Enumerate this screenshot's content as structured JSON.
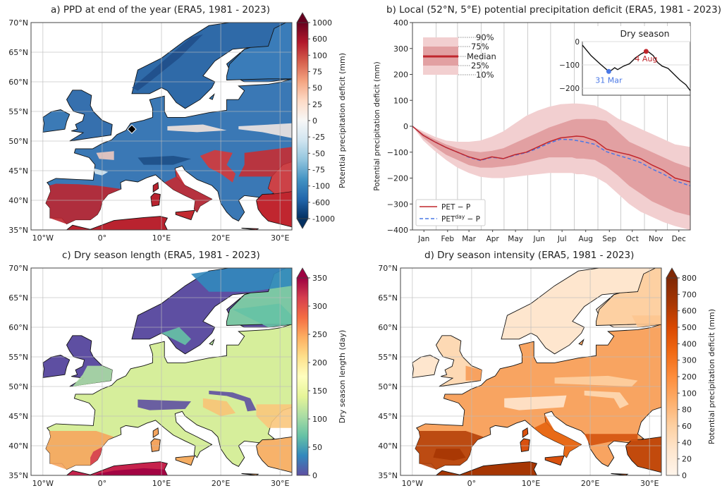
{
  "figure": {
    "panels": [
      "a",
      "b",
      "c",
      "d"
    ]
  },
  "chart_data": [
    {
      "id": "a",
      "type": "heatmap",
      "title": "a) PPD at end of the year (ERA5, 1981 - 2023)",
      "projection": "map",
      "lat_ticks": [
        "70°N",
        "65°N",
        "60°N",
        "55°N",
        "50°N",
        "45°N",
        "40°N",
        "35°N"
      ],
      "lon_ticks": [
        "10°W",
        "0°",
        "10°E",
        "20°E",
        "30°E"
      ],
      "lat_range": [
        35,
        70
      ],
      "lon_range": [
        -12,
        32
      ],
      "colorbar": {
        "label": "Potential precipitation deficit (mm)",
        "ticks": [
          "1000",
          "600",
          "100",
          "75",
          "50",
          "25",
          "0",
          "-25",
          "-50",
          "-75",
          "-100",
          "-600",
          "-1000"
        ],
        "colormap": "RdBu_r",
        "extend": "both",
        "colors_top": "#67001f",
        "colors_bottom": "#053061"
      },
      "marker": {
        "label": "52°N, 5°E",
        "lat": 52,
        "lon": 5,
        "shape": "diamond"
      },
      "regions": [
        {
          "name": "Scandinavia",
          "value_class": "negative"
        },
        {
          "name": "British Isles",
          "value_class": "negative"
        },
        {
          "name": "Central Europe",
          "value_class": "negative"
        },
        {
          "name": "Iberia",
          "value_class": "positive"
        },
        {
          "name": "Pannonian Basin",
          "value_class": "positive"
        },
        {
          "name": "Eastern Balkans / Black Sea",
          "value_class": "positive"
        },
        {
          "name": "North Africa",
          "value_class": "positive"
        }
      ]
    },
    {
      "id": "b",
      "type": "line",
      "title": "b) Local (52°N, 5°E) potential precipitation deficit (ERA5, 1981 - 2023)",
      "ylabel": "Potential precipitation deficit (mm)",
      "xlabel": "",
      "ylim": [
        -400,
        400
      ],
      "yticks": [
        "400",
        "300",
        "200",
        "100",
        "0",
        "−100",
        "−200",
        "−300",
        "−400"
      ],
      "ytick_values": [
        400,
        300,
        200,
        100,
        0,
        -100,
        -200,
        -300,
        -400
      ],
      "months": [
        "Jan",
        "Feb",
        "Mar",
        "Apr",
        "May",
        "Jun",
        "Jul",
        "Aug",
        "Sep",
        "Oct",
        "Nov",
        "Dec"
      ],
      "x_day_of_year": [
        1,
        15,
        30,
        45,
        60,
        75,
        90,
        105,
        120,
        135,
        150,
        165,
        180,
        195,
        210,
        216,
        225,
        240,
        255,
        270,
        285,
        300,
        315,
        330,
        345,
        365
      ],
      "series": [
        {
          "name": "PET − P",
          "style": "solid",
          "color": "#c0262c",
          "values": [
            0,
            -35,
            -60,
            -82,
            -100,
            -118,
            -130,
            -118,
            -125,
            -110,
            -100,
            -80,
            -60,
            -45,
            -40,
            -38,
            -40,
            -55,
            -88,
            -100,
            -110,
            -125,
            -150,
            -170,
            -200,
            -215
          ]
        },
        {
          "name": "PETday − P",
          "style": "dashed",
          "color": "#4a78e6",
          "values": [
            0,
            -35,
            -60,
            -82,
            -100,
            -120,
            -132,
            -120,
            -125,
            -112,
            -102,
            -85,
            -65,
            -50,
            -52,
            -55,
            -60,
            -70,
            -98,
            -112,
            -125,
            -140,
            -165,
            -185,
            -210,
            -230
          ]
        },
        {
          "name": "90%",
          "role": "band_upper_outer",
          "values": [
            0,
            -20,
            -40,
            -55,
            -60,
            -60,
            -55,
            -40,
            -20,
            10,
            40,
            60,
            75,
            85,
            88,
            88,
            86,
            80,
            60,
            30,
            10,
            -10,
            -30,
            -50,
            -70,
            -80
          ]
        },
        {
          "name": "75%",
          "role": "band_upper_inner",
          "values": [
            0,
            -28,
            -50,
            -70,
            -85,
            -95,
            -100,
            -95,
            -85,
            -65,
            -45,
            -25,
            -5,
            10,
            25,
            28,
            28,
            28,
            20,
            -20,
            -60,
            -80,
            -100,
            -120,
            -140,
            -160
          ]
        },
        {
          "name": "25%",
          "role": "band_lower_inner",
          "values": [
            0,
            -45,
            -80,
            -110,
            -130,
            -150,
            -160,
            -160,
            -155,
            -150,
            -140,
            -130,
            -120,
            -120,
            -120,
            -125,
            -125,
            -130,
            -155,
            -190,
            -230,
            -260,
            -290,
            -310,
            -330,
            -345
          ]
        },
        {
          "name": "10%",
          "role": "band_lower_outer",
          "values": [
            0,
            -55,
            -95,
            -130,
            -160,
            -180,
            -195,
            -200,
            -200,
            -195,
            -190,
            -185,
            -180,
            -180,
            -180,
            -185,
            -185,
            -195,
            -220,
            -260,
            -300,
            -330,
            -350,
            -370,
            -385,
            -400
          ]
        }
      ],
      "band_legend": {
        "labels": [
          "90%",
          "75%",
          "Median",
          "25%",
          "10%"
        ]
      },
      "legend": {
        "placement": "lower-left",
        "entries": [
          "PET − P",
          "PETday − P"
        ]
      },
      "inset": {
        "title": "Dry season",
        "ylim": [
          -230,
          0
        ],
        "yticks": [
          "0",
          "−100",
          "−200"
        ],
        "ytick_values": [
          0,
          -100,
          -200
        ],
        "x_day_of_year": [
          1,
          30,
          60,
          90,
          100,
          110,
          120,
          140,
          160,
          180,
          200,
          216,
          225,
          240,
          255,
          270,
          290,
          310,
          330,
          350,
          365
        ],
        "values": [
          -15,
          -60,
          -95,
          -128,
          -122,
          -112,
          -120,
          -105,
          -95,
          -70,
          -52,
          -42,
          -45,
          -60,
          -90,
          -105,
          -115,
          -140,
          -165,
          -185,
          -210
        ],
        "points": [
          {
            "label": "31 Mar",
            "day": 90,
            "value": -128,
            "color": "#4a78e6"
          },
          {
            "label": "4 Aug",
            "day": 216,
            "value": -42,
            "color": "#c0262c"
          }
        ]
      },
      "colors": {
        "median": "#c0262c",
        "band_inner": "#e2a0a2",
        "band_outer": "#f2cfd0",
        "alt": "#4a78e6"
      }
    },
    {
      "id": "c",
      "type": "heatmap",
      "title": "c) Dry season length (ERA5, 1981 - 2023)",
      "projection": "map",
      "lat_ticks": [
        "70°N",
        "65°N",
        "60°N",
        "55°N",
        "50°N",
        "45°N",
        "40°N",
        "35°N"
      ],
      "lon_ticks": [
        "10°W",
        "0°",
        "10°E",
        "20°E",
        "30°E"
      ],
      "lat_range": [
        35,
        70
      ],
      "lon_range": [
        -12,
        32
      ],
      "colorbar": {
        "label": "Dry season length (day)",
        "ticks": [
          "350",
          "300",
          "250",
          "200",
          "150",
          "100",
          "50",
          "0"
        ],
        "range": [
          0,
          350
        ],
        "colormap": "Spectral_r",
        "extend": "max"
      }
    },
    {
      "id": "d",
      "type": "heatmap",
      "title": "d) Dry season intensity (ERA5, 1981 - 2023)",
      "projection": "map",
      "lat_ticks": [
        "70°N",
        "65°N",
        "60°N",
        "55°N",
        "50°N",
        "45°N",
        "40°N",
        "35°N"
      ],
      "lon_ticks": [
        "10°W",
        "0°",
        "10°E",
        "20°E",
        "30°E"
      ],
      "lat_range": [
        35,
        70
      ],
      "lon_range": [
        -12,
        32
      ],
      "colorbar": {
        "label": "Potential precipitation deficit (mm)",
        "ticks": [
          "800",
          "700",
          "600",
          "500",
          "400",
          "300",
          "200",
          "100",
          "80",
          "60",
          "40",
          "20",
          "0"
        ],
        "colormap": "Oranges",
        "extend": "max"
      }
    }
  ]
}
